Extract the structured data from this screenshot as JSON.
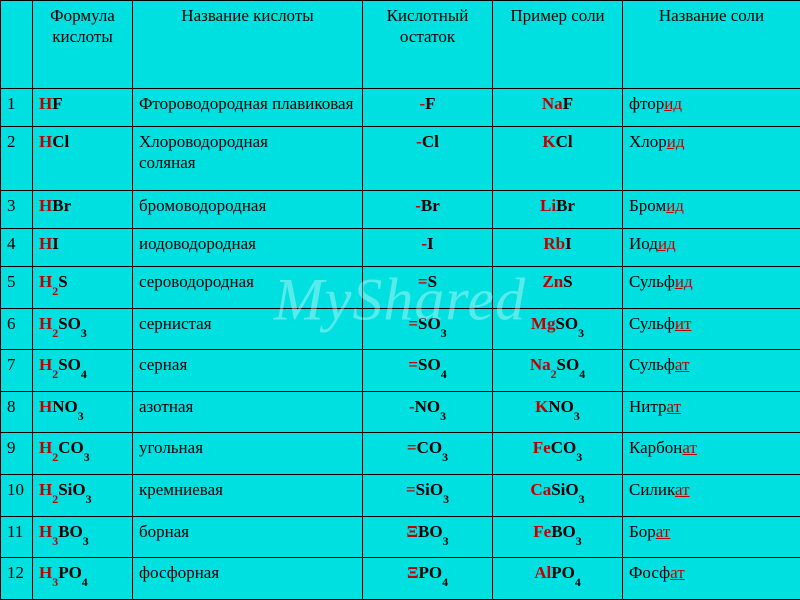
{
  "colors": {
    "cell_bg": "#00e0e0",
    "border": "#000000",
    "element_red": "#c00000",
    "text": "#000000",
    "watermark": "rgba(255,255,255,0.35)"
  },
  "watermark": "MyShared",
  "headers": {
    "num": "",
    "formula": "Формула кислоты",
    "name": "Название\nкислоты",
    "residue": "Кислотный\nостаток",
    "salt": "Пример\nсоли",
    "saltname": "Название\nсоли"
  },
  "rows": [
    {
      "n": "1",
      "fH": "H",
      "fR": "F",
      "name": "Фтороводородная плавиковая",
      "resPre": "-",
      "resR": "F",
      "saltCat": "Na",
      "saltAn": "F",
      "snBase": "фтор",
      "snSuf": "ид"
    },
    {
      "n": "2",
      "fH": "H",
      "fR": "Cl",
      "name": "Хлороводородная\nсоляная",
      "resPre": "-",
      "resR": "Cl",
      "saltCat": "K",
      "saltAn": "Cl",
      "snBase": "Хлор",
      "snSuf": "ид"
    },
    {
      "n": "3",
      "fH": "H",
      "fR": "Br",
      "name": "бромоводородная",
      "resPre": "-",
      "resR": "Br",
      "saltCat": "Li",
      "saltAn": "Br",
      "snBase": "Бром",
      "snSuf": "ид"
    },
    {
      "n": "4",
      "fH": "H",
      "fR": "I",
      "name": "иодоводородная",
      "resPre": "-",
      "resR": "I",
      "saltCat": "Rb",
      "saltAn": "I",
      "snBase": "Иод",
      "snSuf": "ид"
    },
    {
      "n": "5",
      "fH": "H",
      "fHsub": "2",
      "fR": "S",
      "name": "сероводородная",
      "resPre": "=",
      "resR": "S",
      "saltCat": "Zn",
      "saltAn": "S",
      "snBase": "Сульф",
      "snSuf": "ид"
    },
    {
      "n": "6",
      "fH": "H",
      "fHsub": "2",
      "fR": "SO",
      "fRsub": "3",
      "name": "сернистая",
      "resPre": "=",
      "resR": "SO",
      "resSub": "3",
      "saltCat": "Mg",
      "saltAn": "SO",
      "saltSub": "3",
      "snBase": "Сульф",
      "snSuf": "ит"
    },
    {
      "n": "7",
      "fH": "H",
      "fHsub": "2",
      "fR": "SO",
      "fRsub": "4",
      "name": "серная",
      "resPre": "=",
      "resR": "SO",
      "resSub": "4",
      "saltCat": "Na",
      "saltCatSub": "2",
      "saltAn": "SO",
      "saltSub": "4",
      "snBase": "Сульф",
      "snSuf": "ат"
    },
    {
      "n": "8",
      "fH": "H",
      "fR": "NO",
      "fRsub": "3",
      "name": "азотная",
      "resPre": "-",
      "resR": "NO",
      "resSub": "3",
      "saltCat": "K",
      "saltAn": "NO",
      "saltSub": "3",
      "snBase": "Нитр",
      "snSuf": "ат"
    },
    {
      "n": "9",
      "fH": "H",
      "fHsub": "2",
      "fR": "CO",
      "fRsub": "3",
      "name": "угольная",
      "resPre": "=",
      "resR": "CO",
      "resSub": "3",
      "saltCat": "Fe",
      "saltAn": "CO",
      "saltSub": "3",
      "snBase": "Карбон",
      "snSuf": "ат"
    },
    {
      "n": "10",
      "fH": "H",
      "fHsub": "2",
      "fR": "SiO",
      "fRsub": "3",
      "name": "кремниевая",
      "resPre": "=",
      "resR": "SiO",
      "resSub": "3",
      "saltCat": "Ca",
      "saltAn": "SiO",
      "saltSub": "3",
      "snBase": "Силик",
      "snSuf": "ат"
    },
    {
      "n": "11",
      "fH": "H",
      "fHsub": "3",
      "fR": "BO",
      "fRsub": "3",
      "name": "борная",
      "resPre": "Ξ",
      "resR": "BO",
      "resSub": "3",
      "saltCat": "Fe",
      "saltAn": "BO",
      "saltSub": "3",
      "snBase": "Бор",
      "snSuf": "ат"
    },
    {
      "n": "12",
      "fH": "H",
      "fHsub": "3",
      "fR": "PO",
      "fRsub": "4",
      "name": "фосфорная",
      "resPre": "Ξ",
      "resR": "PO",
      "resSub": "4",
      "saltCat": "Al",
      "saltAn": "PO",
      "saltSub": "4",
      "snBase": "Фосф",
      "snSuf": "ат"
    }
  ]
}
